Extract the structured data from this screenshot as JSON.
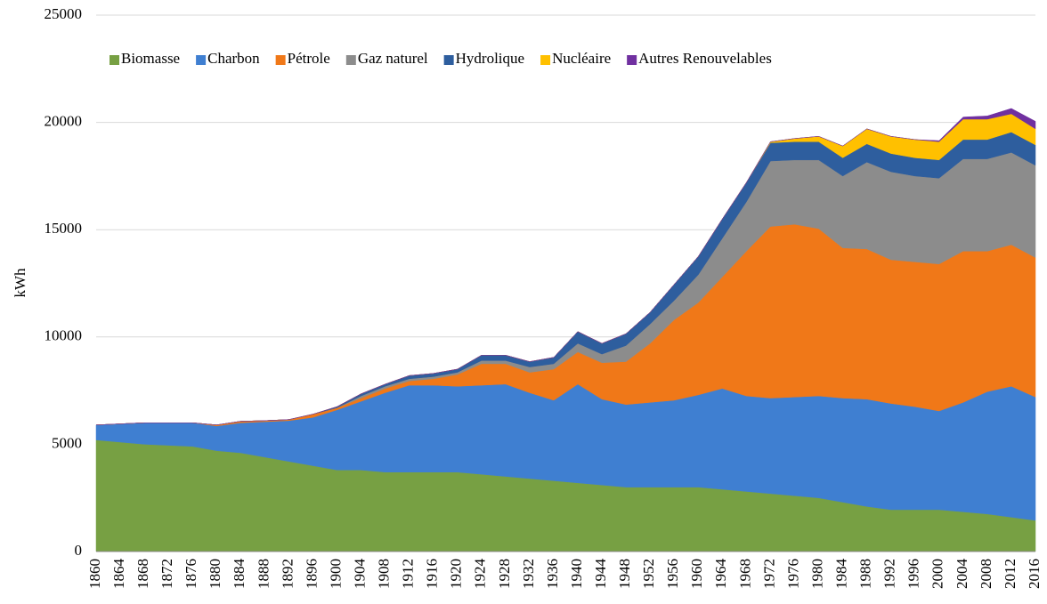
{
  "chart_data": {
    "type": "stacked_area",
    "y_label": "kWh",
    "categories": [
      "1860",
      "1864",
      "1868",
      "1872",
      "1876",
      "1880",
      "1884",
      "1888",
      "1892",
      "1896",
      "1900",
      "1904",
      "1908",
      "1912",
      "1916",
      "1920",
      "1924",
      "1928",
      "1932",
      "1936",
      "1940",
      "1944",
      "1948",
      "1952",
      "1956",
      "1960",
      "1964",
      "1968",
      "1972",
      "1976",
      "1980",
      "1984",
      "1988",
      "1992",
      "1996",
      "2000",
      "2004",
      "2008",
      "2012",
      "2016"
    ],
    "ylim": [
      0,
      25000
    ],
    "yticks": [
      0,
      5000,
      10000,
      15000,
      20000,
      25000
    ],
    "grid": true,
    "legend": "top",
    "series": [
      {
        "name": "Biomasse",
        "color": "#77a043",
        "values": [
          5200,
          5100,
          5000,
          4950,
          4900,
          4700,
          4600,
          4400,
          4200,
          4000,
          3800,
          3800,
          3700,
          3700,
          3700,
          3700,
          3600,
          3500,
          3400,
          3300,
          3200,
          3100,
          3000,
          3000,
          3000,
          3000,
          2900,
          2800,
          2700,
          2600,
          2500,
          2300,
          2100,
          1950,
          1950,
          1950,
          1850,
          1750,
          1600,
          1450
        ]
      },
      {
        "name": "Charbon",
        "color": "#3f7fd1",
        "values": [
          700,
          850,
          1000,
          1050,
          1100,
          1150,
          1400,
          1650,
          1900,
          2250,
          2800,
          3200,
          3700,
          4050,
          4050,
          4000,
          4150,
          4300,
          4000,
          3750,
          4600,
          4000,
          3850,
          3950,
          4050,
          4300,
          4700,
          4450,
          4450,
          4600,
          4750,
          4850,
          5000,
          4950,
          4800,
          4600,
          5100,
          5700,
          6100,
          5750
        ]
      },
      {
        "name": "Pétrole",
        "color": "#f07818",
        "values": [
          0,
          0,
          0,
          0,
          0,
          50,
          70,
          50,
          50,
          150,
          100,
          150,
          200,
          200,
          300,
          550,
          1000,
          950,
          950,
          1450,
          1500,
          1700,
          2000,
          2750,
          3750,
          4300,
          5200,
          6750,
          8000,
          8050,
          7800,
          7000,
          7000,
          6700,
          6750,
          6850,
          7050,
          6550,
          6600,
          6500
        ]
      },
      {
        "name": "Gaz naturel",
        "color": "#8c8c8c",
        "values": [
          0,
          0,
          0,
          0,
          0,
          0,
          0,
          0,
          0,
          0,
          0,
          100,
          100,
          100,
          100,
          100,
          150,
          150,
          250,
          250,
          400,
          400,
          750,
          900,
          900,
          1300,
          1800,
          2300,
          3050,
          3000,
          3200,
          3350,
          4050,
          4100,
          4000,
          4000,
          4300,
          4300,
          4300,
          4300
        ]
      },
      {
        "name": "Hydrolique",
        "color": "#2e5e9e",
        "values": [
          0,
          0,
          0,
          0,
          0,
          0,
          0,
          0,
          0,
          0,
          50,
          100,
          100,
          150,
          150,
          150,
          250,
          250,
          250,
          300,
          550,
          500,
          550,
          550,
          750,
          850,
          900,
          900,
          850,
          850,
          850,
          850,
          850,
          850,
          850,
          850,
          900,
          900,
          950,
          950
        ]
      },
      {
        "name": "Nucléaire",
        "color": "#ffc000",
        "values": [
          0,
          0,
          0,
          0,
          0,
          0,
          0,
          0,
          0,
          0,
          0,
          0,
          0,
          0,
          0,
          0,
          0,
          0,
          0,
          0,
          0,
          0,
          0,
          0,
          0,
          0,
          0,
          0,
          50,
          150,
          250,
          550,
          700,
          800,
          850,
          850,
          950,
          950,
          850,
          750
        ]
      },
      {
        "name": "Autres Renouvelables",
        "color": "#7030a0",
        "values": [
          0,
          0,
          0,
          0,
          0,
          0,
          0,
          0,
          0,
          0,
          0,
          0,
          0,
          0,
          0,
          0,
          0,
          0,
          0,
          0,
          0,
          0,
          0,
          0,
          0,
          0,
          0,
          0,
          0,
          0,
          0,
          0,
          0,
          0,
          0,
          50,
          100,
          150,
          250,
          350
        ]
      }
    ]
  }
}
